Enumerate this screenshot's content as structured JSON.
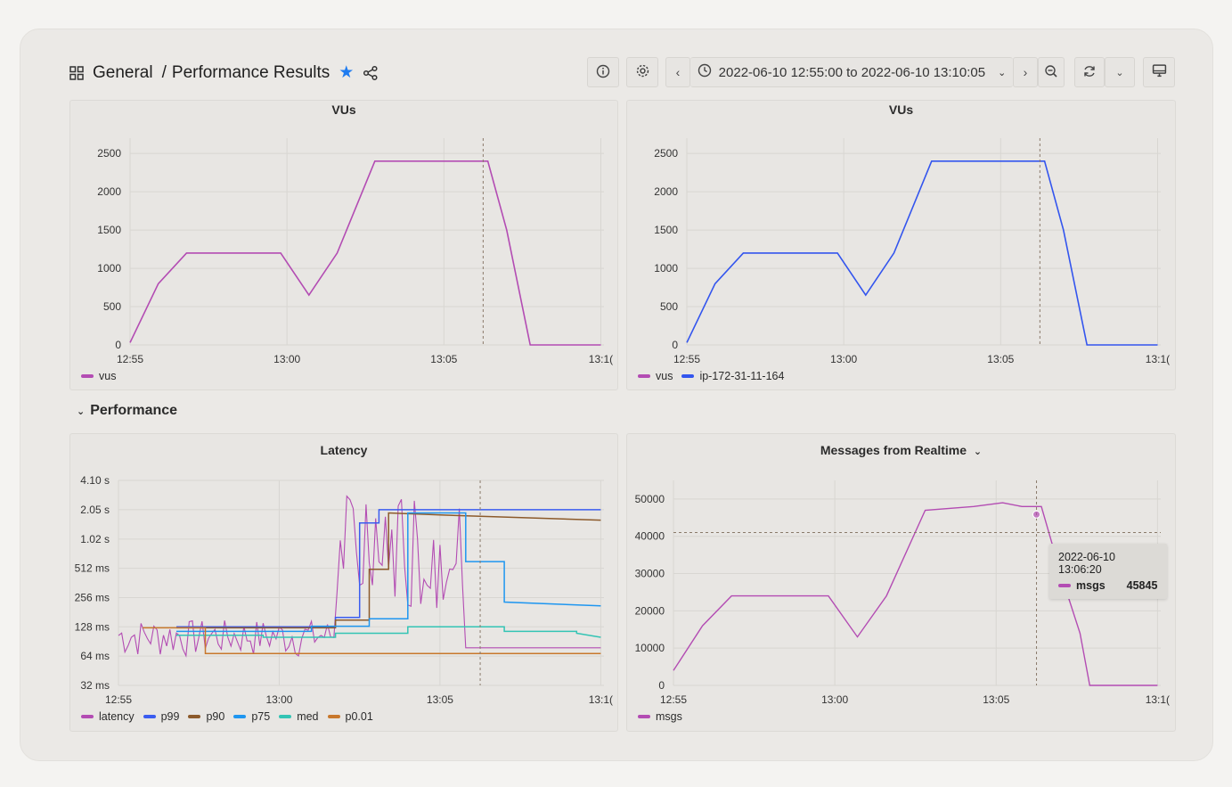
{
  "header": {
    "folder": "General",
    "separator": "/",
    "title": "Performance Results",
    "time_range": "2022-06-10 12:55:00 to 2022-06-10 13:10:05"
  },
  "row": {
    "title": "Performance"
  },
  "colors": {
    "vus": "#b34cb3",
    "ip": "#3355ee",
    "latency": "#b34cb3",
    "p99": "#3a5cf0",
    "p90": "#8c5a2b",
    "p75": "#1e96f0",
    "med": "#33c4b4",
    "p001": "#c8782c",
    "msgs": "#b34cb3",
    "star": "#1f7cf0"
  },
  "panels": {
    "vus_left": {
      "title": "VUs",
      "legend": [
        "vus"
      ]
    },
    "vus_right": {
      "title": "VUs",
      "legend": [
        "vus",
        "ip-172-31-11-164"
      ]
    },
    "latency": {
      "title": "Latency",
      "legend": [
        "latency",
        "p99",
        "p90",
        "p75",
        "med",
        "p0.01"
      ]
    },
    "messages": {
      "title": "Messages from Realtime",
      "legend": [
        "msgs"
      ]
    }
  },
  "tooltip": {
    "time": "2022-06-10 13:06:20",
    "series": "msgs",
    "value": "45845"
  },
  "chart_data": [
    {
      "type": "line",
      "title": "VUs",
      "x_ticks": [
        "12:55",
        "13:00",
        "13:05",
        "13:1("
      ],
      "y_ticks": [
        "0",
        "500",
        "1000",
        "1500",
        "2000",
        "2500"
      ],
      "ylim": [
        0,
        2700
      ],
      "x": [
        0,
        0.6,
        1.2,
        2.1,
        3.2,
        3.8,
        4.4,
        5.2,
        6.2,
        6.8,
        7.2,
        7.6,
        8.0,
        8.5,
        8.8,
        10.0
      ],
      "series": [
        {
          "name": "vus",
          "values": [
            30,
            800,
            1200,
            1200,
            1200,
            650,
            1200,
            2400,
            2400,
            2400,
            2400,
            2400,
            1500,
            0,
            0,
            0
          ]
        }
      ]
    },
    {
      "type": "line",
      "title": "VUs",
      "x_ticks": [
        "12:55",
        "13:00",
        "13:05",
        "13:1("
      ],
      "y_ticks": [
        "0",
        "500",
        "1000",
        "1500",
        "2000",
        "2500"
      ],
      "ylim": [
        0,
        2700
      ],
      "x": [
        0,
        0.6,
        1.2,
        2.1,
        3.2,
        3.8,
        4.4,
        5.2,
        6.2,
        6.8,
        7.2,
        7.6,
        8.0,
        8.5,
        8.8,
        10.0
      ],
      "series": [
        {
          "name": "ip-172-31-11-164",
          "values": [
            30,
            800,
            1200,
            1200,
            1200,
            650,
            1200,
            2400,
            2400,
            2400,
            2400,
            2400,
            1500,
            0,
            0,
            0
          ]
        }
      ]
    },
    {
      "type": "line",
      "title": "Latency",
      "x_ticks": [
        "12:55",
        "13:00",
        "13:05",
        "13:1("
      ],
      "y_ticks": [
        "32 ms",
        "64 ms",
        "128 ms",
        "256 ms",
        "512 ms",
        "1.02 s",
        "2.05 s",
        "4.10 s"
      ],
      "y_scale": "log2",
      "series": [
        {
          "name": "p99",
          "x": [
            1.2,
            4.5,
            4.5,
            5.0,
            5.0,
            5.4,
            5.4,
            10.0
          ],
          "values": [
            128,
            128,
            160,
            160,
            1500,
            1500,
            2050,
            2050
          ]
        },
        {
          "name": "p90",
          "x": [
            1.2,
            4.5,
            4.5,
            5.2,
            5.2,
            5.6,
            5.6,
            6.8,
            10.0
          ],
          "values": [
            125,
            125,
            150,
            150,
            500,
            500,
            1900,
            1800,
            1600
          ]
        },
        {
          "name": "p75",
          "x": [
            1.2,
            4.0,
            4.0,
            5.2,
            5.2,
            6.0,
            6.0,
            7.2,
            7.2,
            8.0,
            8.0,
            10.0
          ],
          "values": [
            115,
            115,
            130,
            130,
            155,
            155,
            1900,
            1900,
            600,
            600,
            230,
            210
          ]
        },
        {
          "name": "med",
          "x": [
            1.2,
            3.0,
            3.0,
            4.5,
            4.5,
            6.0,
            6.0,
            8.0,
            8.0,
            9.5,
            9.5,
            10.0
          ],
          "values": [
            105,
            105,
            100,
            100,
            110,
            110,
            128,
            128,
            115,
            115,
            110,
            100
          ]
        },
        {
          "name": "p0.01",
          "x": [
            0.5,
            1.8,
            1.8,
            6.0,
            10.0
          ],
          "values": [
            125,
            125,
            68,
            68,
            68
          ]
        }
      ]
    },
    {
      "type": "line",
      "title": "Messages from Realtime",
      "x_ticks": [
        "12:55",
        "13:00",
        "13:05",
        "13:1("
      ],
      "y_ticks": [
        "0",
        "10000",
        "20000",
        "30000",
        "40000",
        "50000"
      ],
      "ylim": [
        0,
        55000
      ],
      "x": [
        0,
        0.6,
        1.2,
        2.1,
        3.2,
        3.8,
        4.4,
        5.2,
        6.2,
        6.8,
        7.2,
        7.6,
        8.0,
        8.4,
        8.6,
        10.0
      ],
      "series": [
        {
          "name": "msgs",
          "values": [
            4000,
            16000,
            24000,
            24000,
            24000,
            13000,
            24000,
            47000,
            48000,
            49000,
            48000,
            48000,
            30000,
            14000,
            0,
            0
          ]
        }
      ]
    }
  ]
}
